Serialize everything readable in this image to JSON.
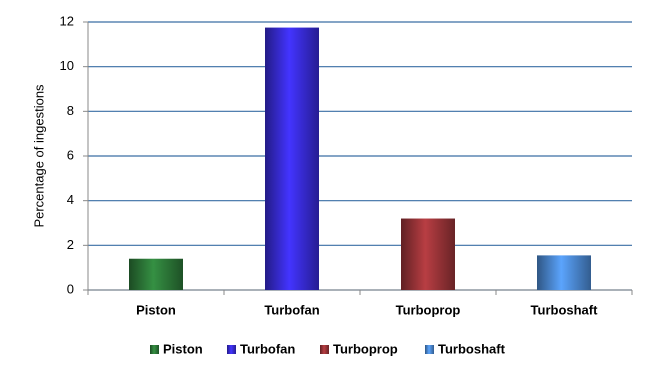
{
  "chart_data": {
    "type": "bar",
    "y_label": "Percentage of ingestions",
    "categories": [
      "Piston",
      "Turbofan",
      "Turboprop",
      "Turboshaft"
    ],
    "values": [
      1.4,
      11.75,
      3.2,
      1.55
    ],
    "colors": [
      "#2e7d3a",
      "#3a2de0",
      "#a0363a",
      "#4f8fdc"
    ],
    "ylim": [
      0,
      12
    ],
    "yticks": [
      0,
      2,
      4,
      6,
      8,
      10,
      12
    ],
    "grid": true,
    "legend": "bottom"
  }
}
